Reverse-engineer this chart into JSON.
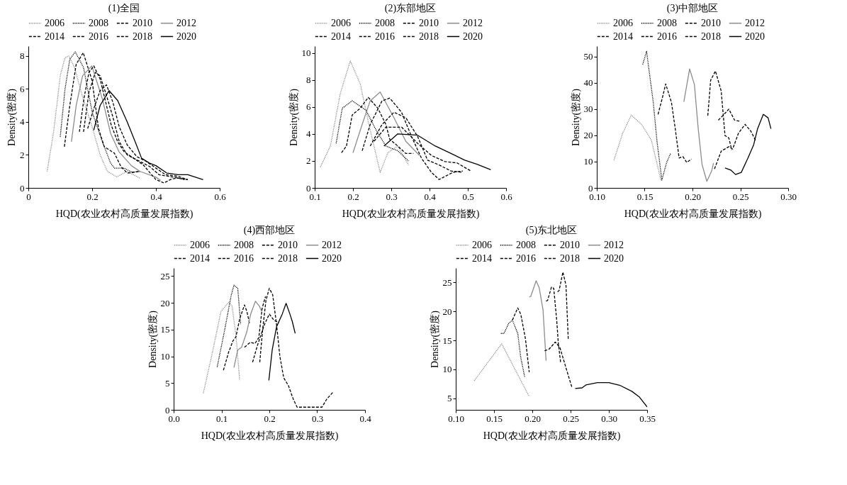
{
  "chart_data": [
    {
      "type": "line",
      "title": "(1)全国",
      "xlabel": "HQD(农业农村高质量发展指数)",
      "ylabel": "Density(密度)",
      "legend": "top",
      "xlim": [
        0,
        0.6
      ],
      "xticks": [
        0,
        0.2,
        0.4,
        0.6
      ],
      "ylim": [
        0,
        8.6
      ],
      "yticks": [
        0,
        2,
        4,
        6,
        8
      ],
      "series": [
        {
          "name": "2006",
          "color": "#8c8c8c",
          "line_style": "dotted",
          "x": [
            0.059,
            0.08,
            0.1,
            0.115,
            0.127,
            0.145,
            0.17,
            0.2,
            0.225,
            0.248,
            0.277,
            0.31,
            0.352
          ],
          "values": [
            1.0,
            3.5,
            6.8,
            7.9,
            8.0,
            7.3,
            5.5,
            3.7,
            2.0,
            1.0,
            0.67,
            1.0,
            0.57
          ]
        },
        {
          "name": "2008",
          "color": "#000000",
          "line_style": "dotted",
          "x": [
            0.1,
            0.115,
            0.13,
            0.147,
            0.173,
            0.2,
            0.232,
            0.258,
            0.27,
            0.3,
            0.325,
            0.35
          ],
          "values": [
            3.1,
            6.0,
            7.8,
            8.25,
            7.3,
            4.6,
            2.8,
            1.5,
            1.2,
            1.2,
            0.95,
            1.0
          ]
        },
        {
          "name": "2010",
          "color": "#000000",
          "line_style": "dashed",
          "x": [
            0.113,
            0.13,
            0.15,
            0.172,
            0.2,
            0.22,
            0.238,
            0.27,
            0.29,
            0.31,
            0.35
          ],
          "values": [
            2.5,
            5.0,
            7.5,
            8.2,
            6.5,
            3.6,
            2.5,
            2.1,
            1.3,
            0.9,
            1.0
          ]
        },
        {
          "name": "2012",
          "color": "#8c8c8c",
          "line_style": "solid",
          "x": [
            0.135,
            0.15,
            0.17,
            0.199,
            0.232,
            0.258,
            0.284,
            0.323,
            0.35,
            0.4,
            0.415
          ],
          "values": [
            2.8,
            5.0,
            6.8,
            7.4,
            5.4,
            3.3,
            2.2,
            1.35,
            1.0,
            0.65,
            0.45
          ]
        },
        {
          "name": "2014",
          "color": "#000000",
          "line_style": "dashed",
          "x": [
            0.16,
            0.175,
            0.19,
            0.205,
            0.225,
            0.245,
            0.26,
            0.28,
            0.3,
            0.33,
            0.36,
            0.4,
            0.425,
            0.45,
            0.47,
            0.5
          ],
          "values": [
            3.4,
            5.5,
            7.0,
            7.4,
            6.6,
            5.0,
            3.8,
            2.8,
            2.2,
            1.8,
            1.4,
            0.5,
            0.3,
            0.55,
            0.6,
            0.5
          ]
        },
        {
          "name": "2016",
          "color": "#000000",
          "line_style": "dashed",
          "x": [
            0.173,
            0.19,
            0.21,
            0.225,
            0.245,
            0.265,
            0.285,
            0.31,
            0.35,
            0.38,
            0.41,
            0.44,
            0.47,
            0.49
          ],
          "values": [
            3.4,
            5.8,
            7.0,
            6.8,
            5.6,
            4.3,
            2.8,
            2.0,
            1.6,
            1.3,
            0.8,
            0.7,
            0.6,
            0.5
          ]
        },
        {
          "name": "2018",
          "color": "#000000",
          "line_style": "dashed",
          "x": [
            0.186,
            0.205,
            0.225,
            0.245,
            0.265,
            0.285,
            0.31,
            0.34,
            0.37,
            0.4,
            0.43,
            0.47,
            0.5
          ],
          "values": [
            3.6,
            4.8,
            5.9,
            6.25,
            5.2,
            3.7,
            2.6,
            1.9,
            1.6,
            1.2,
            0.8,
            0.7,
            0.5
          ]
        },
        {
          "name": "2020",
          "color": "#000000",
          "line_style": "solid",
          "x": [
            0.205,
            0.225,
            0.253,
            0.28,
            0.31,
            0.335,
            0.355,
            0.38,
            0.4,
            0.434,
            0.47,
            0.5,
            0.548
          ],
          "values": [
            3.5,
            5.0,
            5.9,
            5.3,
            4.0,
            2.8,
            1.8,
            1.5,
            1.35,
            0.9,
            0.8,
            0.8,
            0.5
          ]
        }
      ]
    },
    {
      "type": "line",
      "title": "(2)东部地区",
      "xlabel": "HQD(农业农村高质量发展指数)",
      "ylabel": "Density(密度)",
      "legend": "top",
      "xlim": [
        0.1,
        0.6
      ],
      "xticks": [
        0.1,
        0.2,
        0.3,
        0.4,
        0.5,
        0.6
      ],
      "ylim": [
        0,
        10.5
      ],
      "yticks": [
        0,
        2,
        4,
        6,
        8,
        10
      ],
      "series": [
        {
          "name": "2006",
          "color": "#8c8c8c",
          "line_style": "dotted",
          "x": [
            0.115,
            0.141,
            0.167,
            0.193,
            0.219,
            0.24,
            0.271,
            0.291,
            0.317,
            0.345
          ],
          "values": [
            1.55,
            3.1,
            7.0,
            9.4,
            7.7,
            4.9,
            1.15,
            2.6,
            3.1,
            1.7
          ]
        },
        {
          "name": "2008",
          "color": "#000000",
          "line_style": "dotted",
          "x": [
            0.156,
            0.172,
            0.198,
            0.234,
            0.26,
            0.286,
            0.317,
            0.345
          ],
          "values": [
            3.3,
            5.9,
            6.45,
            5.75,
            4.3,
            3.1,
            2.75,
            2.0
          ]
        },
        {
          "name": "2010",
          "color": "#000000",
          "line_style": "dashed",
          "x": [
            0.17,
            0.183,
            0.198,
            0.219,
            0.24,
            0.265,
            0.286,
            0.296,
            0.317,
            0.338,
            0.358
          ],
          "values": [
            2.6,
            3.1,
            5.4,
            5.9,
            6.7,
            5.9,
            4.7,
            3.6,
            3.1,
            2.55,
            2.55
          ]
        },
        {
          "name": "2012",
          "color": "#8c8c8c",
          "line_style": "solid",
          "x": [
            0.2,
            0.224,
            0.245,
            0.271,
            0.307,
            0.338,
            0.374
          ],
          "values": [
            2.6,
            4.7,
            6.45,
            7.1,
            5.2,
            3.45,
            2.4
          ]
        },
        {
          "name": "2014",
          "color": "#000000",
          "line_style": "dashed",
          "x": [
            0.224,
            0.245,
            0.276,
            0.296,
            0.327,
            0.353,
            0.379,
            0.405,
            0.425,
            0.461,
            0.487
          ],
          "values": [
            2.75,
            4.7,
            6.45,
            6.65,
            5.6,
            3.8,
            2.2,
            1.15,
            0.62,
            1.15,
            1.25
          ]
        },
        {
          "name": "2016",
          "color": "#000000",
          "line_style": "dashed",
          "x": [
            0.245,
            0.276,
            0.307,
            0.338,
            0.369,
            0.395,
            0.425,
            0.456,
            0.487
          ],
          "values": [
            3.1,
            4.7,
            5.6,
            5.2,
            3.8,
            2.05,
            1.7,
            1.25,
            1.15
          ]
        },
        {
          "name": "2018",
          "color": "#000000",
          "line_style": "dashed",
          "x": [
            0.255,
            0.286,
            0.327,
            0.369,
            0.405,
            0.44,
            0.472,
            0.508
          ],
          "values": [
            3.45,
            4.5,
            4.5,
            3.3,
            2.4,
            1.95,
            1.85,
            1.25
          ]
        },
        {
          "name": "2020",
          "color": "#000000",
          "line_style": "solid",
          "x": [
            0.281,
            0.317,
            0.369,
            0.415,
            0.456,
            0.492,
            0.524,
            0.56
          ],
          "values": [
            3.1,
            4.0,
            3.9,
            3.1,
            2.55,
            2.05,
            1.75,
            1.35
          ]
        }
      ]
    },
    {
      "type": "line",
      "title": "(3)中部地区",
      "xlabel": "HQD(农业农村高质量发展指数)",
      "ylabel": "Density(密度)",
      "legend": "top",
      "xlim": [
        0.1,
        0.3
      ],
      "xticks": [
        {
          "value": 0.1,
          "label": "0.10"
        },
        0.15,
        {
          "value": 0.2,
          "label": "0.20"
        },
        0.25,
        {
          "value": 0.3,
          "label": "0.30"
        }
      ],
      "ylim": [
        0,
        54
      ],
      "yticks": [
        0,
        10,
        20,
        30,
        40,
        50
      ],
      "series": [
        {
          "name": "2006",
          "color": "#8c8c8c",
          "line_style": "dotted",
          "x": [
            0.118,
            0.127,
            0.136,
            0.147,
            0.157,
            0.167
          ],
          "values": [
            10.6,
            20.8,
            27.7,
            24.1,
            18.2,
            3.0
          ]
        },
        {
          "name": "2008",
          "color": "#000000",
          "line_style": "dotted",
          "x": [
            0.148,
            0.152,
            0.159,
            0.163,
            0.168,
            0.173,
            0.177
          ],
          "values": [
            47,
            52,
            32.6,
            17.4,
            3.0,
            9.7,
            13
          ]
        },
        {
          "name": "2010",
          "color": "#000000",
          "line_style": "dashed",
          "x": [
            0.164,
            0.169,
            0.172,
            0.178,
            0.182,
            0.186,
            0.19,
            0.194,
            0.199
          ],
          "values": [
            28,
            35,
            39.6,
            32.6,
            22.5,
            11.4,
            11.9,
            9.7,
            11
          ]
        },
        {
          "name": "2012",
          "color": "#8c8c8c",
          "line_style": "solid",
          "x": [
            0.191,
            0.197,
            0.202,
            0.206,
            0.21,
            0.215,
            0.22,
            0.222
          ],
          "values": [
            32.8,
            45.3,
            39.4,
            22.5,
            8.9,
            2.5,
            6.4,
            9.5
          ]
        },
        {
          "name": "2014",
          "color": "#000000",
          "line_style": "dashed",
          "x": [
            0.216,
            0.219,
            0.224,
            0.23,
            0.234,
            0.238,
            0.241
          ],
          "values": [
            27.5,
            41,
            44.5,
            36.9,
            19.9,
            19,
            14.5
          ]
        },
        {
          "name": "2016",
          "color": "#000000",
          "line_style": "dashed",
          "x": [
            0.227,
            0.233,
            0.238,
            0.244,
            0.249
          ],
          "values": [
            25.8,
            28,
            30,
            25.8,
            25.4
          ]
        },
        {
          "name": "2018",
          "color": "#000000",
          "line_style": "dashed",
          "x": [
            0.223,
            0.23,
            0.238,
            0.242,
            0.248,
            0.255,
            0.261,
            0.266
          ],
          "values": [
            7.2,
            14,
            15.7,
            14.8,
            20.8,
            24.2,
            21.6,
            18
          ]
        },
        {
          "name": "2020",
          "color": "#000000",
          "line_style": "solid",
          "x": [
            0.234,
            0.24,
            0.245,
            0.251,
            0.258,
            0.264,
            0.268,
            0.274,
            0.279,
            0.282
          ],
          "values": [
            7.6,
            6.8,
            5.1,
            5.9,
            11.4,
            16.5,
            22.5,
            28,
            26.7,
            22.5
          ]
        }
      ]
    },
    {
      "type": "line",
      "title": "(4)西部地区",
      "xlabel": "HQD(农业农村高质量发展指数)",
      "ylabel": "Density(密度)",
      "legend": "top",
      "xlim": [
        0,
        0.4
      ],
      "xticks": [
        {
          "value": 0,
          "label": "0.0"
        },
        0.1,
        0.2,
        0.3,
        0.4
      ],
      "ylim": [
        0,
        26.5
      ],
      "yticks": [
        0,
        5,
        10,
        15,
        20,
        25
      ],
      "series": [
        {
          "name": "2006",
          "color": "#8c8c8c",
          "line_style": "dotted",
          "x": [
            0.062,
            0.08,
            0.099,
            0.115,
            0.122,
            0.13,
            0.138
          ],
          "values": [
            3.1,
            10.3,
            18.4,
            20.1,
            19.4,
            14.1,
            5.5
          ]
        },
        {
          "name": "2008",
          "color": "#000000",
          "line_style": "dotted",
          "x": [
            0.091,
            0.107,
            0.12,
            0.126,
            0.134,
            0.14
          ],
          "values": [
            8.0,
            15.1,
            21.3,
            23.3,
            22.7,
            16
          ]
        },
        {
          "name": "2010",
          "color": "#000000",
          "line_style": "dashed",
          "x": [
            0.104,
            0.115,
            0.124,
            0.13,
            0.138,
            0.148,
            0.153,
            0.159
          ],
          "values": [
            7.4,
            10.8,
            12.9,
            13.6,
            17,
            19.6,
            18.4,
            16
          ]
        },
        {
          "name": "2012",
          "color": "#8c8c8c",
          "line_style": "solid",
          "x": [
            0.126,
            0.134,
            0.142,
            0.153,
            0.161,
            0.171,
            0.179,
            0.184
          ],
          "values": [
            7.9,
            11.2,
            11.7,
            14.6,
            17.9,
            20.3,
            19.4,
            18.4
          ]
        },
        {
          "name": "2014",
          "color": "#000000",
          "line_style": "dashed",
          "x": [
            0.148,
            0.16,
            0.17,
            0.178,
            0.185,
            0.192
          ],
          "values": [
            11.7,
            12.6,
            12.4,
            13.5,
            19,
            21.2
          ]
        },
        {
          "name": "2016",
          "color": "#000000",
          "line_style": "dashed",
          "x": [
            0.165,
            0.175,
            0.19,
            0.2,
            0.21,
            0.22
          ],
          "values": [
            8.9,
            12,
            16,
            17.9,
            16.7,
            16.3
          ]
        },
        {
          "name": "2018",
          "color": "#000000",
          "line_style": "dashed",
          "x": [
            0.18,
            0.186,
            0.193,
            0.2,
            0.207,
            0.215,
            0.222,
            0.23,
            0.24,
            0.25,
            0.258,
            0.3,
            0.31,
            0.32,
            0.333
          ],
          "values": [
            8.9,
            15,
            20.5,
            22.7,
            21.5,
            16,
            10,
            6,
            4.5,
            2,
            0.5,
            0.5,
            0.5,
            2,
            3.3
          ]
        },
        {
          "name": "2020",
          "color": "#000000",
          "line_style": "solid",
          "x": [
            0.199,
            0.206,
            0.215,
            0.227,
            0.235,
            0.243,
            0.248,
            0.254
          ],
          "values": [
            5.5,
            11.2,
            15.5,
            17.9,
            19.9,
            17.9,
            16.5,
            14.3
          ]
        }
      ]
    },
    {
      "type": "line",
      "title": "(5)东北地区",
      "xlabel": "HQD(农业农村高质量发展指数)",
      "ylabel": "Density(密度)",
      "legend": "top",
      "xlim": [
        0.1,
        0.35
      ],
      "xticks": [
        {
          "value": 0.1,
          "label": "0.10"
        },
        0.15,
        {
          "value": 0.2,
          "label": "0.20"
        },
        0.25,
        {
          "value": 0.3,
          "label": "0.30"
        },
        0.35
      ],
      "ylim": [
        3,
        27.5
      ],
      "yticks": [
        5,
        10,
        15,
        20,
        25
      ],
      "series": [
        {
          "name": "2006",
          "color": "#8c8c8c",
          "line_style": "dotted",
          "x": [
            0.124,
            0.16,
            0.196
          ],
          "values": [
            8.0,
            14.4,
            5.3
          ]
        },
        {
          "name": "2008",
          "color": "#000000",
          "line_style": "dotted",
          "x": [
            0.159,
            0.163,
            0.169,
            0.174,
            0.181,
            0.185,
            0.19
          ],
          "values": [
            16.2,
            16.2,
            17.9,
            18.5,
            16.2,
            12,
            8.7
          ]
        },
        {
          "name": "2010",
          "color": "#000000",
          "line_style": "dashed",
          "x": [
            0.174,
            0.181,
            0.185,
            0.191,
            0.196
          ],
          "values": [
            18.5,
            20.6,
            19.5,
            15.3,
            9.5
          ]
        },
        {
          "name": "2012",
          "color": "#8c8c8c",
          "line_style": "solid",
          "x": [
            0.196,
            0.198,
            0.205,
            0.209,
            0.214,
            0.218
          ],
          "values": [
            22.5,
            22.6,
            25.3,
            24.1,
            20.3,
            11.5
          ]
        },
        {
          "name": "2014",
          "color": "#000000",
          "line_style": "dashed",
          "x": [
            0.218,
            0.22,
            0.225,
            0.228,
            0.232,
            0.234,
            0.237
          ],
          "values": [
            21.8,
            21.9,
            24.2,
            24,
            18.3,
            14.5,
            11.2
          ]
        },
        {
          "name": "2016",
          "color": "#000000",
          "line_style": "dashed",
          "x": [
            0.216,
            0.222,
            0.23,
            0.236,
            0.243,
            0.248,
            0.252
          ],
          "values": [
            13.2,
            13.5,
            14.7,
            13.8,
            10.7,
            8.5,
            6.8
          ]
        },
        {
          "name": "2018",
          "color": "#000000",
          "line_style": "dashed",
          "x": [
            0.233,
            0.235,
            0.24,
            0.244,
            0.247
          ],
          "values": [
            23.4,
            23.6,
            26.8,
            24.5,
            15.1
          ]
        },
        {
          "name": "2020",
          "color": "#000000",
          "line_style": "solid",
          "x": [
            0.256,
            0.265,
            0.27,
            0.285,
            0.3,
            0.315,
            0.33,
            0.34,
            0.35
          ],
          "values": [
            6.7,
            6.8,
            7.3,
            7.7,
            7.7,
            7.2,
            6.2,
            5.2,
            3.5
          ]
        }
      ]
    }
  ]
}
